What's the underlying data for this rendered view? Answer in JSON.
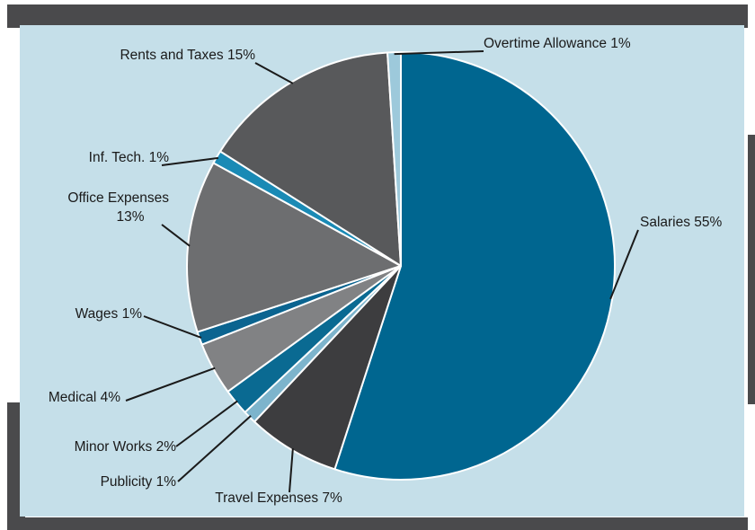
{
  "chart_data": {
    "type": "pie",
    "title": "",
    "slices": [
      {
        "label": "Salaries 55%",
        "value": 55,
        "color": "#006690"
      },
      {
        "label": "Travel Expenses 7%",
        "value": 7,
        "color": "#3d3d3f"
      },
      {
        "label": "Publicity 1%",
        "value": 1,
        "color": "#7db4cc"
      },
      {
        "label": "Minor Works 2%",
        "value": 2,
        "color": "#0a6a92"
      },
      {
        "label": "Medical 4%",
        "value": 4,
        "color": "#818284"
      },
      {
        "label": "Wages 1%",
        "value": 1,
        "color": "#0b6490"
      },
      {
        "label": [
          "Office Expenses",
          "13%"
        ],
        "value": 13,
        "color": "#6d6e70"
      },
      {
        "label": "Inf. Tech. 1%",
        "value": 1,
        "color": "#1a8ab5"
      },
      {
        "label": "Rents and Taxes 15%",
        "value": 15,
        "color": "#58595b"
      },
      {
        "label": "Overtime Allowance 1%",
        "value": 1,
        "color": "#9dc9db"
      }
    ],
    "start_angle_deg": 0,
    "direction": "clockwise",
    "legend": "none"
  }
}
